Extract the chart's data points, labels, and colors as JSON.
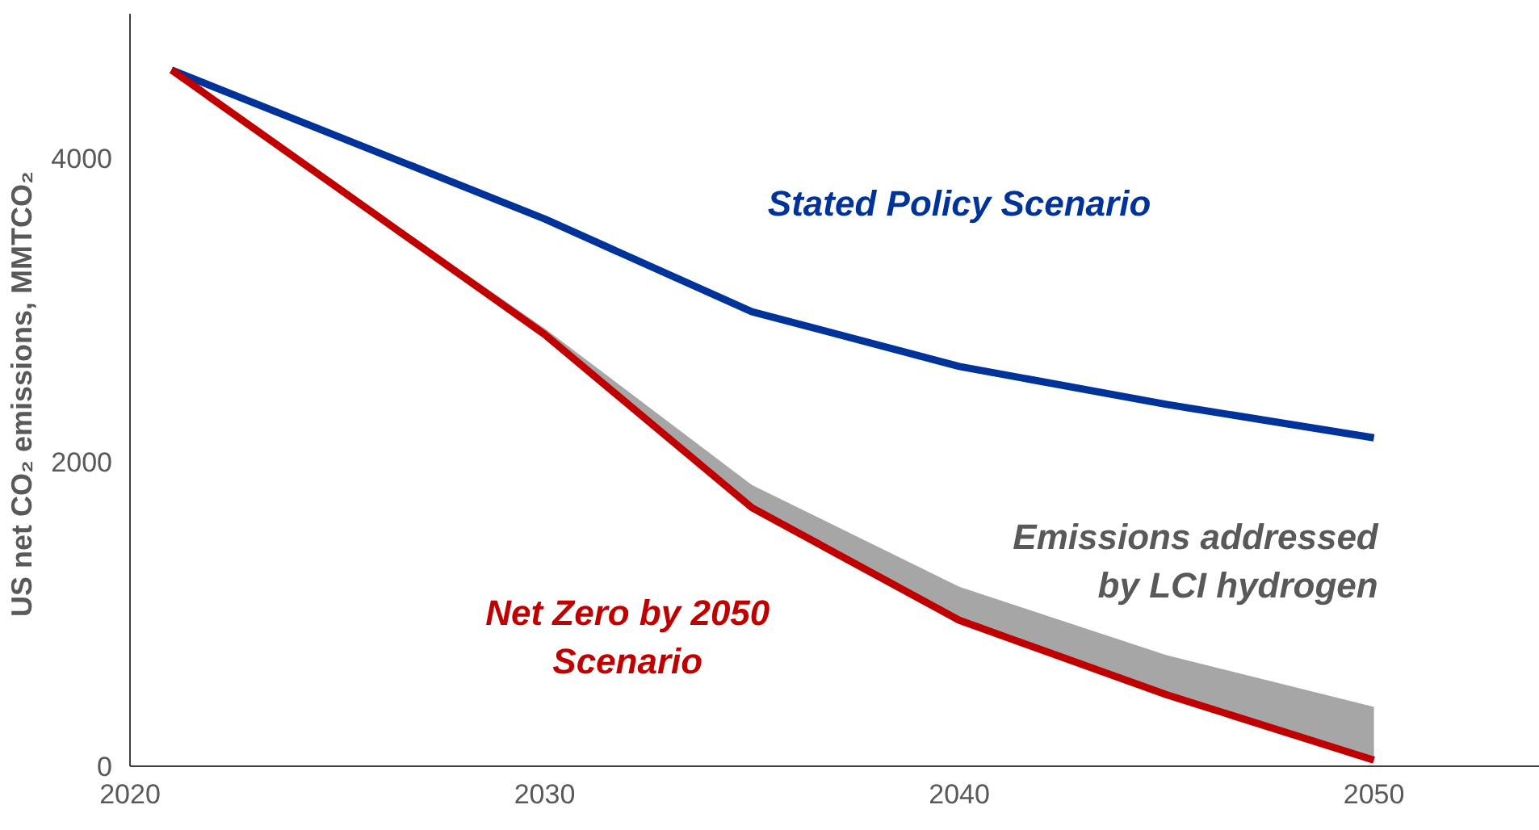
{
  "chart_data": {
    "type": "line",
    "ylabel": "US net CO₂ emissions,  MMTCO₂",
    "x": [
      2021,
      2030,
      2035,
      2040,
      2045,
      2050
    ],
    "series": [
      {
        "name": "Stated Policy Scenario",
        "color": "#003399",
        "values": [
          4580,
          3600,
          2990,
          2630,
          2380,
          2160
        ]
      },
      {
        "name": "Net Zero by 2050 Scenario",
        "color": "#c00000",
        "values": [
          4580,
          2840,
          1700,
          960,
          470,
          40
        ],
        "lower": [
          4580,
          2840,
          1700,
          960,
          470,
          40
        ],
        "upper": [
          4580,
          2880,
          1850,
          1180,
          730,
          390
        ]
      }
    ],
    "annotations": [
      "Emissions addressed by LCI hydrogen"
    ],
    "xlim": [
      2020,
      2054
    ],
    "ylim": [
      0,
      4950
    ],
    "xticks": [
      2020,
      2030,
      2040,
      2050
    ],
    "yticks": [
      0,
      2000,
      4000
    ],
    "grid": false
  }
}
